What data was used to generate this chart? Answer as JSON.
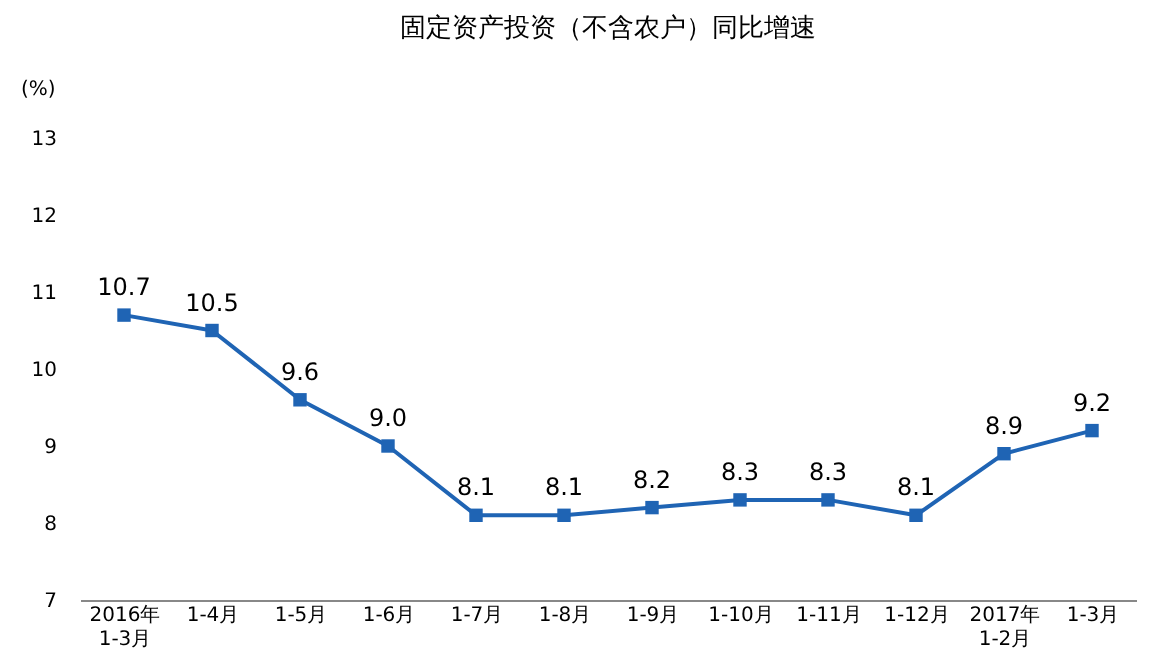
{
  "chart_data": {
    "type": "line",
    "title": "固定资产投资（不含农户）同比增速",
    "ylabel": "(%)",
    "categories": [
      "2016年\n1-3月",
      "1-4月",
      "1-5月",
      "1-6月",
      "1-7月",
      "1-8月",
      "1-9月",
      "1-10月",
      "1-11月",
      "1-12月",
      "2017年\n1-2月",
      "1-3月"
    ],
    "series": [
      {
        "color": "#1f64b4",
        "values": [
          10.7,
          10.5,
          9.6,
          9.0,
          8.1,
          8.1,
          8.2,
          8.3,
          8.3,
          8.1,
          8.9,
          9.2
        ],
        "value_labels": [
          "10.7",
          "10.5",
          "9.6",
          "9.0",
          "8.1",
          "8.1",
          "8.2",
          "8.3",
          "8.3",
          "8.1",
          "8.9",
          "9.2"
        ]
      }
    ],
    "ylim": [
      7,
      13
    ],
    "yticks": [
      7,
      8,
      9,
      10,
      11,
      12,
      13
    ],
    "grid": false,
    "marker": "square",
    "line_style": "solid",
    "data_labels": true,
    "legend": false
  }
}
